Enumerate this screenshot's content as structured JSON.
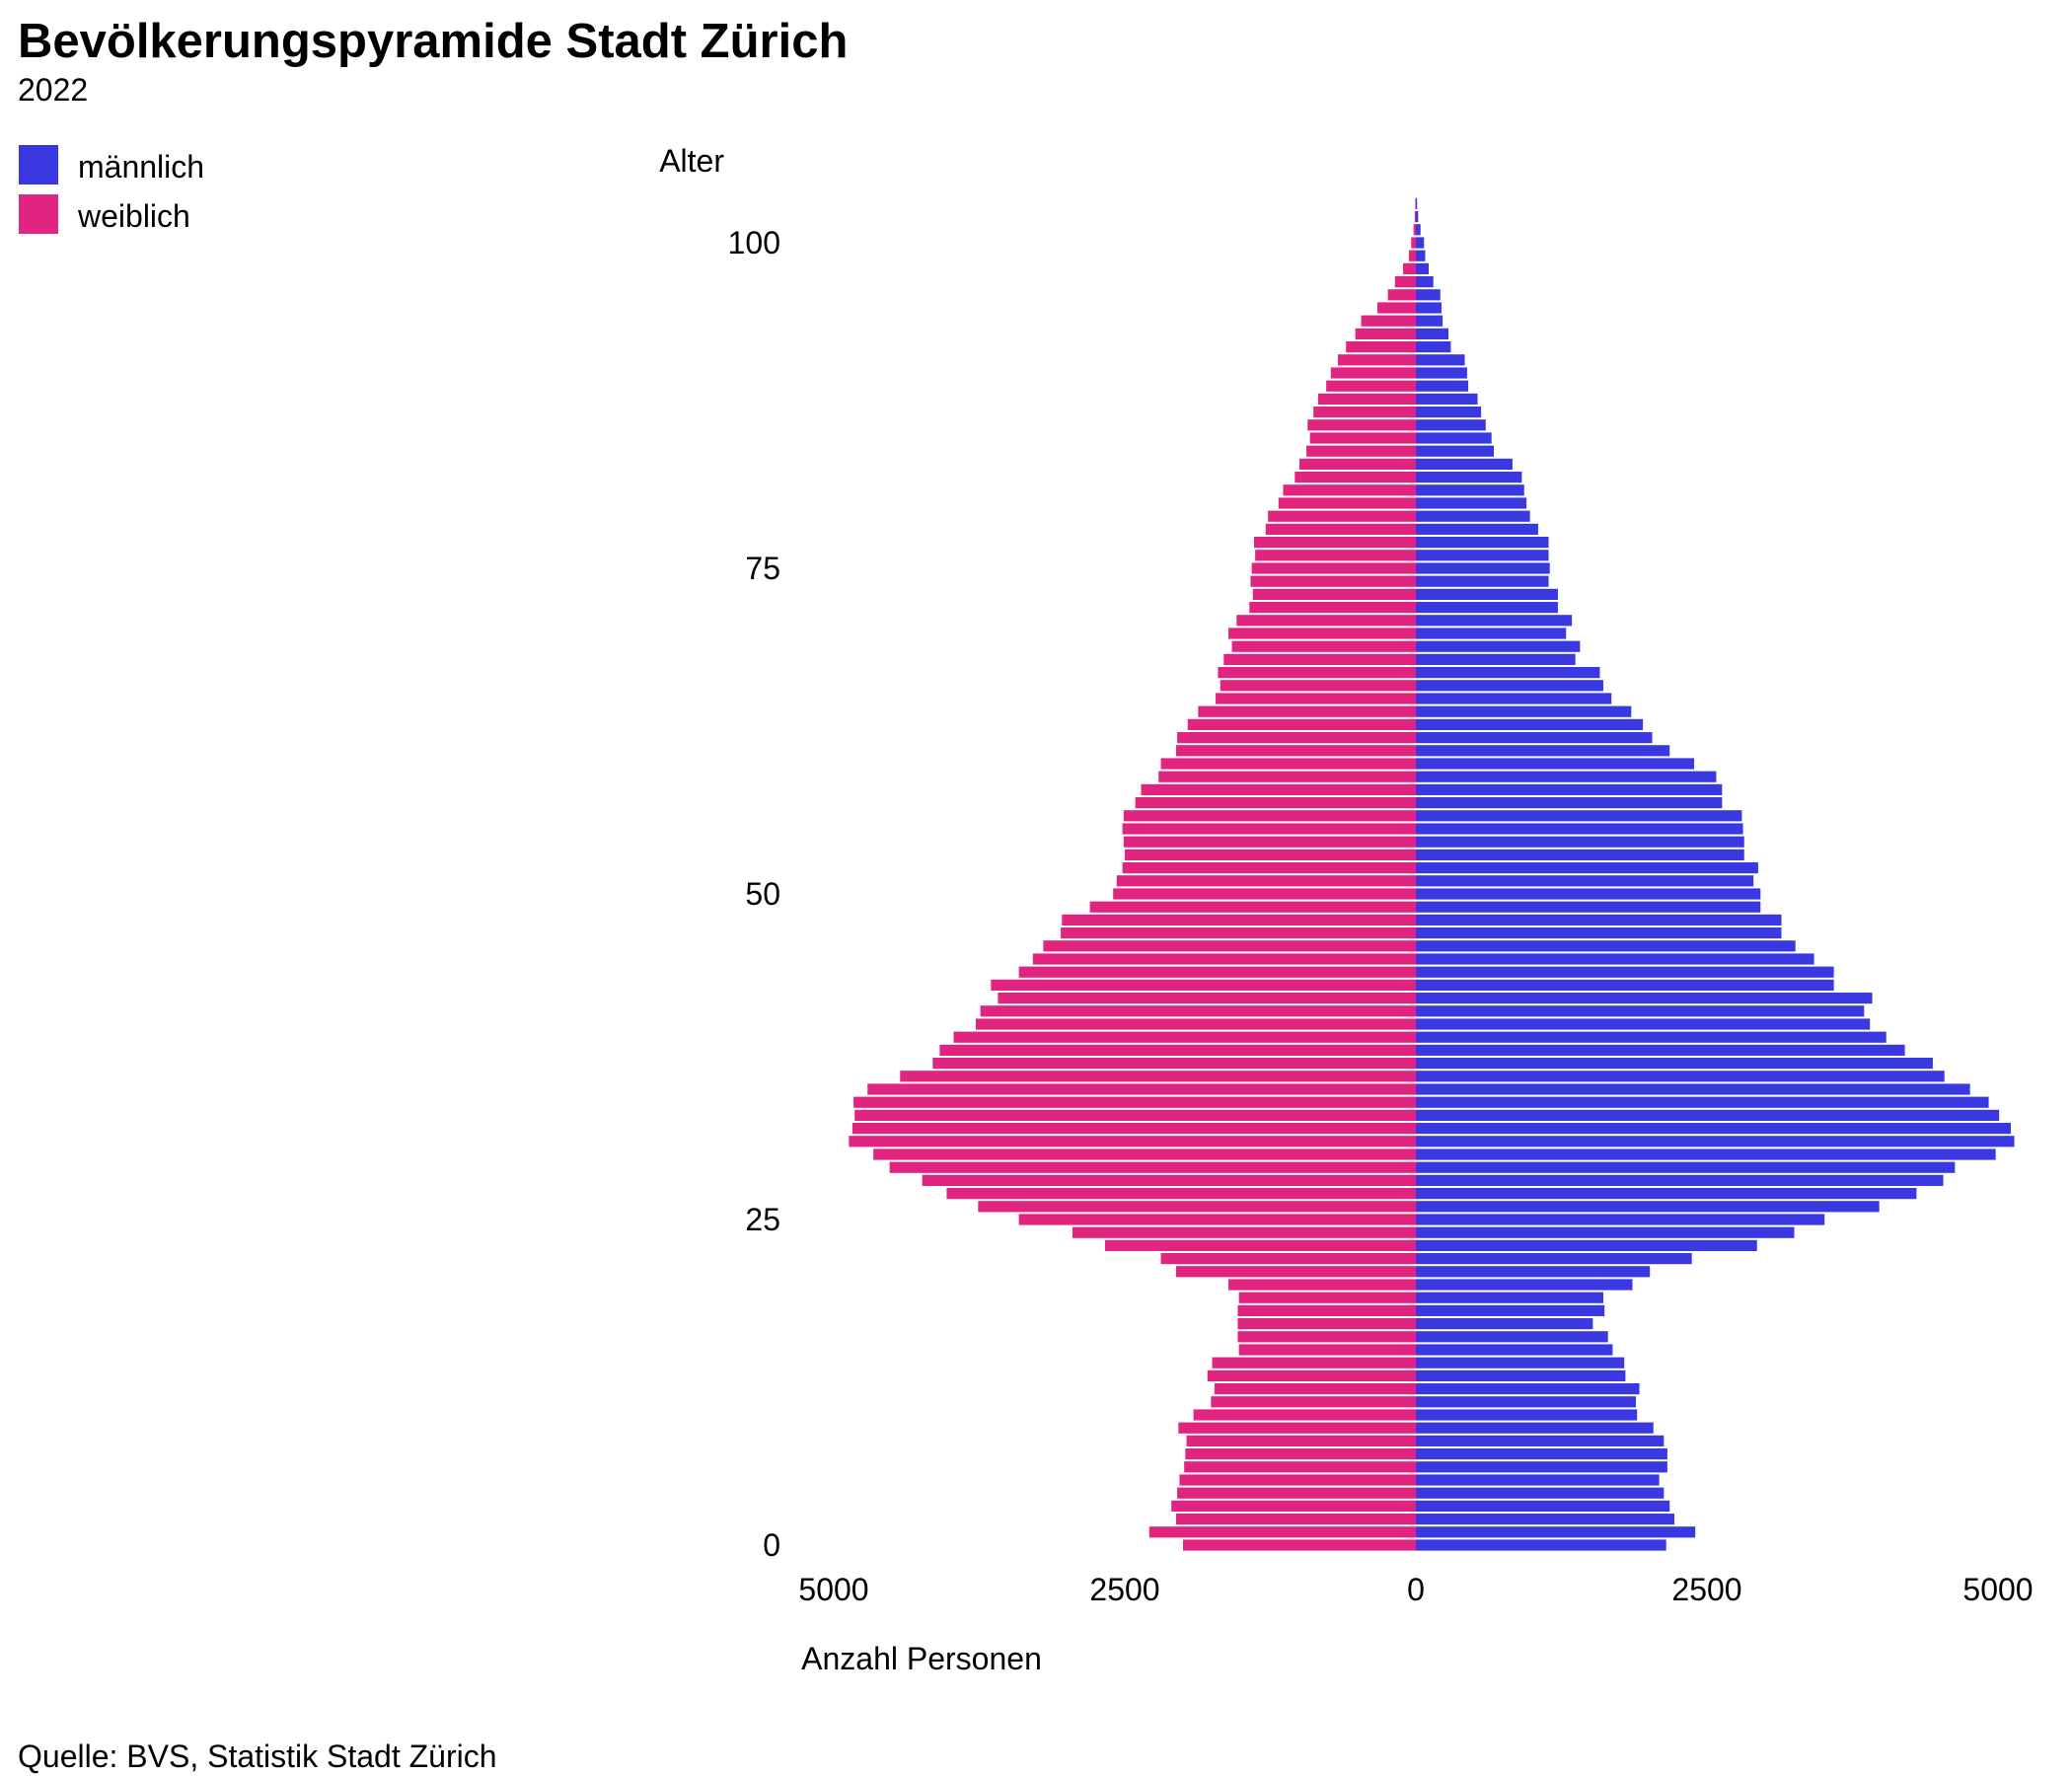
{
  "chart_data": {
    "type": "bar",
    "orientation": "horizontal",
    "layout": "population-pyramid",
    "title": "Bevölkerungspyramide Stadt Zürich",
    "subtitle": "2022",
    "ylabel": "Alter",
    "xlabel": "Anzahl Personen",
    "source": "Quelle: BVS, Statistik Stadt Zürich",
    "legend_position": "top-left",
    "grid": false,
    "xlim": [
      -5000,
      5000
    ],
    "ylim": [
      0,
      103
    ],
    "x_ticks": [
      {
        "value": -5000,
        "label": "5000"
      },
      {
        "value": -2500,
        "label": "2500"
      },
      {
        "value": 0,
        "label": "0"
      },
      {
        "value": 2500,
        "label": "2500"
      },
      {
        "value": 5000,
        "label": "5000"
      }
    ],
    "y_ticks": [
      0,
      25,
      50,
      75,
      100
    ],
    "series": [
      {
        "name": "männlich",
        "side": "right",
        "color": "#3A38E0",
        "ages": [
          0,
          1,
          2,
          3,
          4,
          5,
          6,
          7,
          8,
          9,
          10,
          11,
          12,
          13,
          14,
          15,
          16,
          17,
          18,
          19,
          20,
          21,
          22,
          23,
          24,
          25,
          26,
          27,
          28,
          29,
          30,
          31,
          32,
          33,
          34,
          35,
          36,
          37,
          38,
          39,
          40,
          41,
          42,
          43,
          44,
          45,
          46,
          47,
          48,
          49,
          50,
          51,
          52,
          53,
          54,
          55,
          56,
          57,
          58,
          59,
          60,
          61,
          62,
          63,
          64,
          65,
          66,
          67,
          68,
          69,
          70,
          71,
          72,
          73,
          74,
          75,
          76,
          77,
          78,
          79,
          80,
          81,
          82,
          83,
          84,
          85,
          86,
          87,
          88,
          89,
          90,
          91,
          92,
          93,
          94,
          95,
          96,
          97,
          98,
          99,
          100,
          101,
          102,
          103
        ],
        "values": [
          2150,
          2400,
          2220,
          2180,
          2130,
          2090,
          2160,
          2160,
          2130,
          2040,
          1900,
          1890,
          1920,
          1800,
          1790,
          1690,
          1650,
          1520,
          1620,
          1610,
          1860,
          2010,
          2370,
          2930,
          3250,
          3510,
          3980,
          4300,
          4530,
          4630,
          4980,
          5140,
          5110,
          5010,
          4920,
          4760,
          4540,
          4440,
          4200,
          4040,
          3900,
          3850,
          3920,
          3590,
          3590,
          3420,
          3260,
          3140,
          3140,
          2960,
          2960,
          2900,
          2940,
          2820,
          2820,
          2810,
          2800,
          2630,
          2630,
          2580,
          2390,
          2180,
          2030,
          1950,
          1850,
          1680,
          1610,
          1580,
          1370,
          1410,
          1290,
          1340,
          1220,
          1220,
          1140,
          1150,
          1140,
          1140,
          1050,
          980,
          950,
          930,
          910,
          830,
          670,
          650,
          600,
          560,
          530,
          450,
          440,
          420,
          300,
          280,
          230,
          220,
          210,
          150,
          110,
          80,
          70,
          40,
          20,
          10
        ]
      },
      {
        "name": "weiblich",
        "side": "left",
        "color": "#E0247F",
        "ages": [
          0,
          1,
          2,
          3,
          4,
          5,
          6,
          7,
          8,
          9,
          10,
          11,
          12,
          13,
          14,
          15,
          16,
          17,
          18,
          19,
          20,
          21,
          22,
          23,
          24,
          25,
          26,
          27,
          28,
          29,
          30,
          31,
          32,
          33,
          34,
          35,
          36,
          37,
          38,
          39,
          40,
          41,
          42,
          43,
          44,
          45,
          46,
          47,
          48,
          49,
          50,
          51,
          52,
          53,
          54,
          55,
          56,
          57,
          58,
          59,
          60,
          61,
          62,
          63,
          64,
          65,
          66,
          67,
          68,
          69,
          70,
          71,
          72,
          73,
          74,
          75,
          76,
          77,
          78,
          79,
          80,
          81,
          82,
          83,
          84,
          85,
          86,
          87,
          88,
          89,
          90,
          91,
          92,
          93,
          94,
          95,
          96,
          97,
          98,
          99,
          100,
          101,
          102,
          103
        ],
        "values": [
          2000,
          2290,
          2060,
          2100,
          2050,
          2030,
          1990,
          1980,
          1970,
          2040,
          1910,
          1760,
          1730,
          1790,
          1750,
          1520,
          1530,
          1530,
          1530,
          1520,
          1610,
          2060,
          2190,
          2670,
          2950,
          3410,
          3760,
          4030,
          4240,
          4520,
          4660,
          4870,
          4840,
          4820,
          4830,
          4710,
          4430,
          4150,
          4090,
          3970,
          3780,
          3740,
          3590,
          3650,
          3410,
          3290,
          3200,
          3050,
          3040,
          2800,
          2600,
          2570,
          2520,
          2500,
          2510,
          2520,
          2510,
          2410,
          2360,
          2210,
          2190,
          2060,
          2050,
          1960,
          1870,
          1720,
          1680,
          1700,
          1650,
          1580,
          1610,
          1540,
          1430,
          1400,
          1420,
          1410,
          1380,
          1390,
          1290,
          1270,
          1180,
          1140,
          1040,
          1000,
          940,
          910,
          930,
          880,
          840,
          770,
          730,
          670,
          600,
          520,
          470,
          330,
          240,
          180,
          110,
          60,
          40,
          20,
          10,
          5
        ]
      }
    ]
  },
  "colors": {
    "male": "#3A38E0",
    "female": "#E0247F",
    "text": "#000000",
    "background": "#FFFFFF"
  }
}
